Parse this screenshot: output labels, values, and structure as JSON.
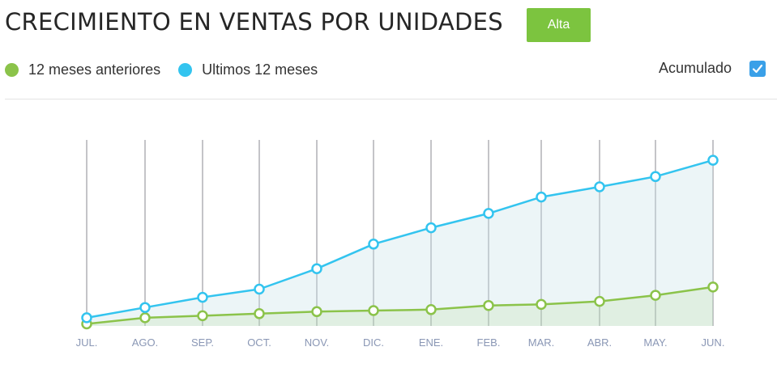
{
  "header": {
    "title": "CRECIMIENTO EN VENTAS POR UNIDADES",
    "badge_label": "Alta"
  },
  "legend": {
    "items": [
      {
        "label": "12 meses anteriores",
        "color": "#8bc34a"
      },
      {
        "label": "Ultimos 12 meses",
        "color": "#33c4ef"
      }
    ]
  },
  "toggle": {
    "label": "Acumulado",
    "checked": true,
    "color": "#3aa0e8"
  },
  "chart_data": {
    "type": "area",
    "categories": [
      "JUL.",
      "AGO.",
      "SEP.",
      "OCT.",
      "NOV.",
      "DIC.",
      "ENE.",
      "FEB.",
      "MAR.",
      "ABR.",
      "MAY.",
      "JUN."
    ],
    "series": [
      {
        "name": "12 meses anteriores",
        "color": "#8bc34a",
        "values": [
          1,
          4,
          5,
          6,
          7,
          7.5,
          8,
          10,
          10.5,
          12,
          15,
          19
        ]
      },
      {
        "name": "Ultimos 12 meses",
        "color": "#33c4ef",
        "values": [
          4,
          9,
          14,
          18,
          28,
          40,
          48,
          55,
          63,
          68,
          73,
          81
        ]
      }
    ],
    "ylim": [
      0,
      100
    ],
    "grid": "vertical",
    "xlabel": "",
    "ylabel": ""
  }
}
